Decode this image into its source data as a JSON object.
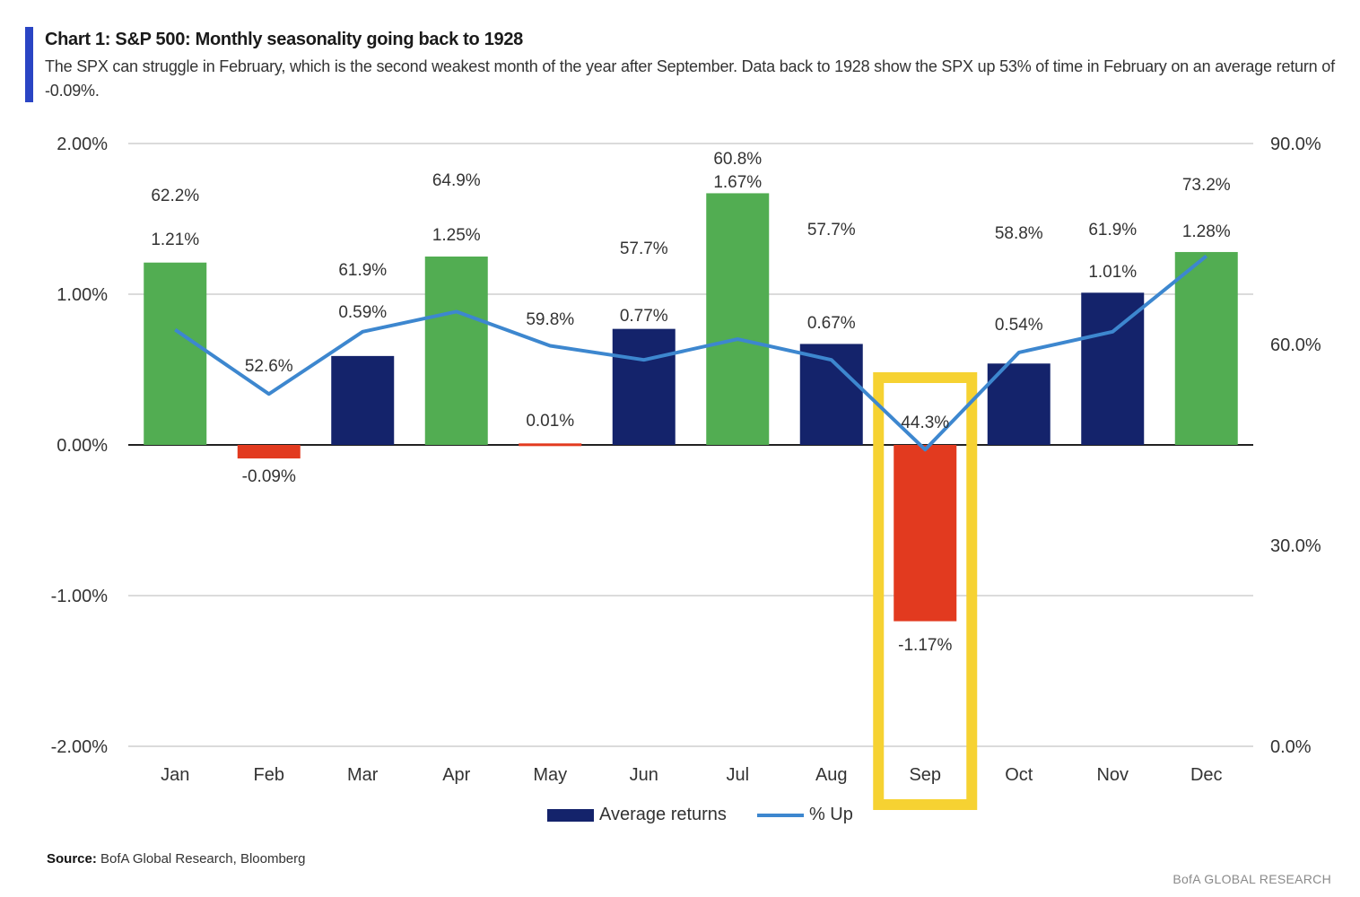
{
  "title": "Chart 1: S&P 500: Monthly seasonality going back to 1928",
  "subtitle": "The SPX can struggle in February, which is the second weakest month of the year after September. Data back to 1928 show the SPX up 53% of time in February on an average return of -0.09%.",
  "legend": {
    "bars": "Average returns",
    "line": "% Up"
  },
  "source_label": "Source:",
  "source_text": "BofA Global Research, Bloomberg",
  "brand": "BofA GLOBAL RESEARCH",
  "colors": {
    "positive_high": "#52ad52",
    "average": "#14236b",
    "negative": "#e23a1f",
    "line": "#3d87cf",
    "highlight": "#f6d232",
    "title_accent": "#2a45c4"
  },
  "chart_data": {
    "type": "bar",
    "categories": [
      "Jan",
      "Feb",
      "Mar",
      "Apr",
      "May",
      "Jun",
      "Jul",
      "Aug",
      "Sep",
      "Oct",
      "Nov",
      "Dec"
    ],
    "series": [
      {
        "name": "Average returns",
        "type": "bar",
        "values": [
          1.21,
          -0.09,
          0.59,
          1.25,
          0.01,
          0.77,
          1.67,
          0.67,
          -1.17,
          0.54,
          1.01,
          1.28
        ],
        "labels": [
          "1.21%",
          "-0.09%",
          "0.59%",
          "1.25%",
          "0.01%",
          "0.77%",
          "1.67%",
          "0.67%",
          "-1.17%",
          "0.54%",
          "1.01%",
          "1.28%"
        ],
        "bar_colors": [
          "green",
          "red",
          "navy",
          "green",
          "red",
          "navy",
          "green",
          "navy",
          "red",
          "navy",
          "navy",
          "green"
        ]
      },
      {
        "name": "% Up",
        "type": "line",
        "axis": "right",
        "values": [
          62.2,
          52.6,
          61.9,
          64.9,
          59.8,
          57.7,
          60.8,
          57.7,
          44.3,
          58.8,
          61.9,
          73.2
        ],
        "labels": [
          "62.2%",
          "52.6%",
          "61.9%",
          "64.9%",
          "59.8%",
          "57.7%",
          "60.8%",
          "57.7%",
          "44.3%",
          "58.8%",
          "61.9%",
          "73.2%"
        ]
      }
    ],
    "y_left": {
      "ylim": [
        -2,
        2
      ],
      "ticks": [
        "2.00%",
        "1.00%",
        "0.00%",
        "-1.00%",
        "-2.00%"
      ]
    },
    "y_right": {
      "ylim": [
        0,
        90
      ],
      "ticks": [
        "90.0%",
        "60.0%",
        "30.0%",
        "0.0%"
      ]
    },
    "highlight_category": "Sep",
    "grid": true
  }
}
